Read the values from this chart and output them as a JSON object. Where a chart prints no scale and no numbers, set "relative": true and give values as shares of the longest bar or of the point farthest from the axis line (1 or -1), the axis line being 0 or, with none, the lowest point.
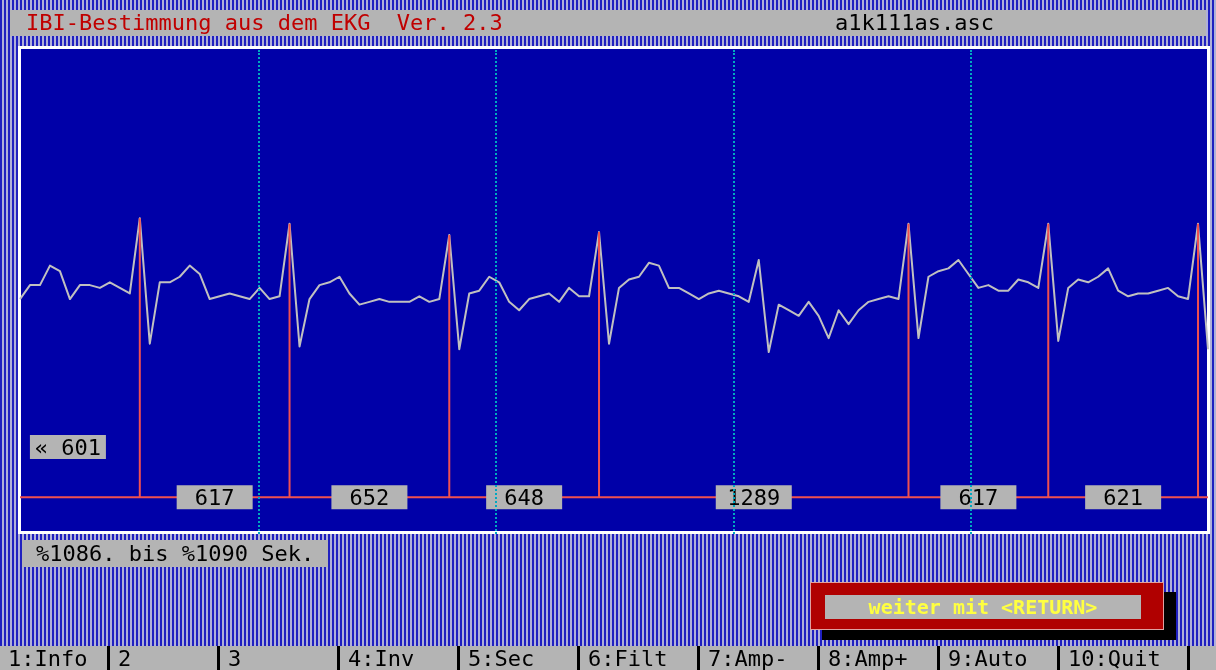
{
  "chart_data": {
    "type": "line",
    "title": "IBI-Bestimmung aus dem EKG  Ver. 2.3",
    "subtitle": "a1k111as.asc",
    "relative": true,
    "categories": [
      null,
      null,
      null,
      null,
      null,
      null,
      null,
      null,
      null,
      null,
      null,
      null,
      null,
      null,
      null,
      null,
      null,
      null,
      null,
      null,
      null,
      null,
      null,
      null,
      null,
      null,
      null,
      null,
      null,
      null,
      null,
      null,
      null,
      null,
      null,
      null,
      null,
      null,
      null,
      null,
      null,
      null,
      null,
      null,
      null,
      null,
      null,
      null,
      null,
      null,
      null,
      null,
      null,
      null,
      null,
      null,
      null,
      null,
      null,
      null,
      null,
      null,
      null,
      null,
      null,
      null,
      null,
      null,
      null,
      null,
      null,
      null,
      null,
      null,
      null,
      null,
      null,
      null,
      null,
      null,
      null,
      null,
      null,
      null,
      null,
      null,
      null,
      null,
      null,
      null,
      null,
      null,
      null,
      null,
      null,
      null,
      null,
      null,
      null,
      null,
      null,
      null,
      null,
      null,
      null,
      null,
      null,
      null,
      null,
      null,
      null,
      null,
      null,
      null,
      null,
      null,
      null,
      null,
      null,
      null
    ],
    "grid": "x",
    "series": [
      {
        "color": "#c0c0c0",
        "values": [
          0.71,
          0.76,
          0.76,
          0.83,
          0.81,
          0.71,
          0.76,
          0.76,
          0.75,
          0.77,
          0.75,
          0.73,
          1.0,
          0.55,
          0.77,
          0.77,
          0.79,
          0.83,
          0.8,
          0.71,
          0.72,
          0.73,
          0.72,
          0.71,
          0.75,
          0.71,
          0.72,
          0.98,
          0.54,
          0.71,
          0.76,
          0.77,
          0.79,
          0.73,
          0.69,
          0.7,
          0.71,
          0.7,
          0.7,
          0.7,
          0.72,
          0.7,
          0.71,
          0.94,
          0.53,
          0.73,
          0.74,
          0.79,
          0.77,
          0.7,
          0.67,
          0.71,
          0.72,
          0.73,
          0.7,
          0.75,
          0.72,
          0.72,
          0.95,
          0.55,
          0.75,
          0.78,
          0.79,
          0.84,
          0.83,
          0.75,
          0.75,
          0.73,
          0.71,
          0.73,
          0.74,
          0.73,
          0.72,
          0.7,
          0.85,
          0.52,
          0.69,
          0.67,
          0.65,
          0.7,
          0.65,
          0.57,
          0.67,
          0.62,
          0.67,
          0.7,
          0.71,
          0.72,
          0.71,
          0.98,
          0.57,
          0.79,
          0.81,
          0.82,
          0.85,
          0.8,
          0.75,
          0.76,
          0.74,
          0.74,
          0.78,
          0.77,
          0.75,
          0.98,
          0.56,
          0.75,
          0.78,
          0.77,
          0.79,
          0.82,
          0.74,
          0.72,
          0.73,
          0.73,
          0.74,
          0.75,
          0.72,
          0.71,
          0.98,
          0.53
        ]
      }
    ],
    "annotations": [
      "« 601",
      "617",
      "652",
      "648",
      "1289",
      "617",
      "621",
      "%1086. bis %1090 Sek.",
      "weiter mit <RETURN>",
      "1:Info",
      "2",
      "3",
      "4:Inv",
      "5:Sec",
      "6:Filt",
      "7:Amp-",
      "8:Amp+",
      "9:Auto",
      "10:Quit"
    ]
  }
}
